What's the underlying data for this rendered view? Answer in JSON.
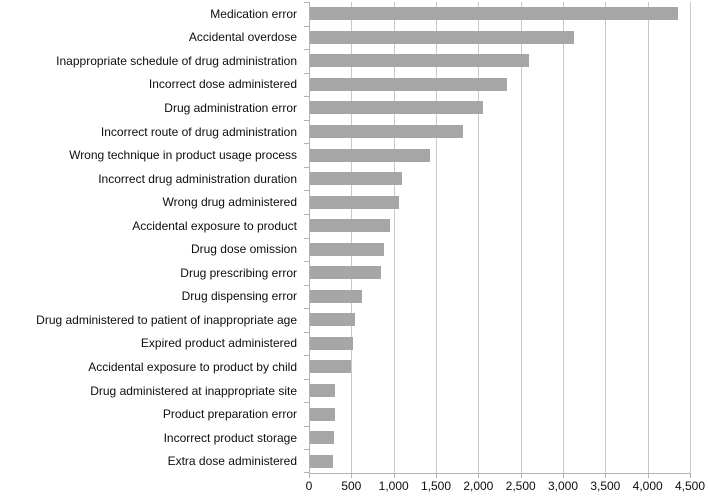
{
  "chart_data": {
    "type": "bar",
    "orientation": "horizontal",
    "title": "",
    "xlabel": "",
    "ylabel": "",
    "categories": [
      "Medication error",
      "Accidental overdose",
      "Inappropriate schedule of drug administration",
      "Incorrect dose administered",
      "Drug administration error",
      "Incorrect route of drug administration",
      "Wrong technique in product usage process",
      "Incorrect drug administration duration",
      "Wrong drug administered",
      "Accidental exposure to product",
      "Drug dose omission",
      "Drug prescribing error",
      "Drug dispensing error",
      "Drug administered to patient of inappropriate age",
      "Expired product administered",
      "Accidental exposure to product by child",
      "Drug administered at inappropriate site",
      "Product preparation error",
      "Incorrect product storage",
      "Extra dose administered"
    ],
    "values": [
      4360,
      3130,
      2600,
      2340,
      2060,
      1820,
      1430,
      1100,
      1060,
      960,
      890,
      850,
      630,
      540,
      520,
      500,
      310,
      310,
      300,
      280
    ],
    "xlim": [
      0,
      4500
    ],
    "x_ticks": [
      0,
      500,
      1000,
      1500,
      2000,
      2500,
      3000,
      3500,
      4000,
      4500
    ],
    "x_tick_labels": [
      "0",
      "500",
      "1,000",
      "1,500",
      "2,000",
      "2,500",
      "3,000",
      "3,500",
      "4,000",
      "4,500"
    ],
    "grid": "vertical-gridlines-on",
    "legend": "none",
    "bar_color": "#a6a6a6",
    "gridline_color": "#c9c9c9",
    "axis_color": "#b3b3b3",
    "text_color": "#0d0d0d"
  }
}
